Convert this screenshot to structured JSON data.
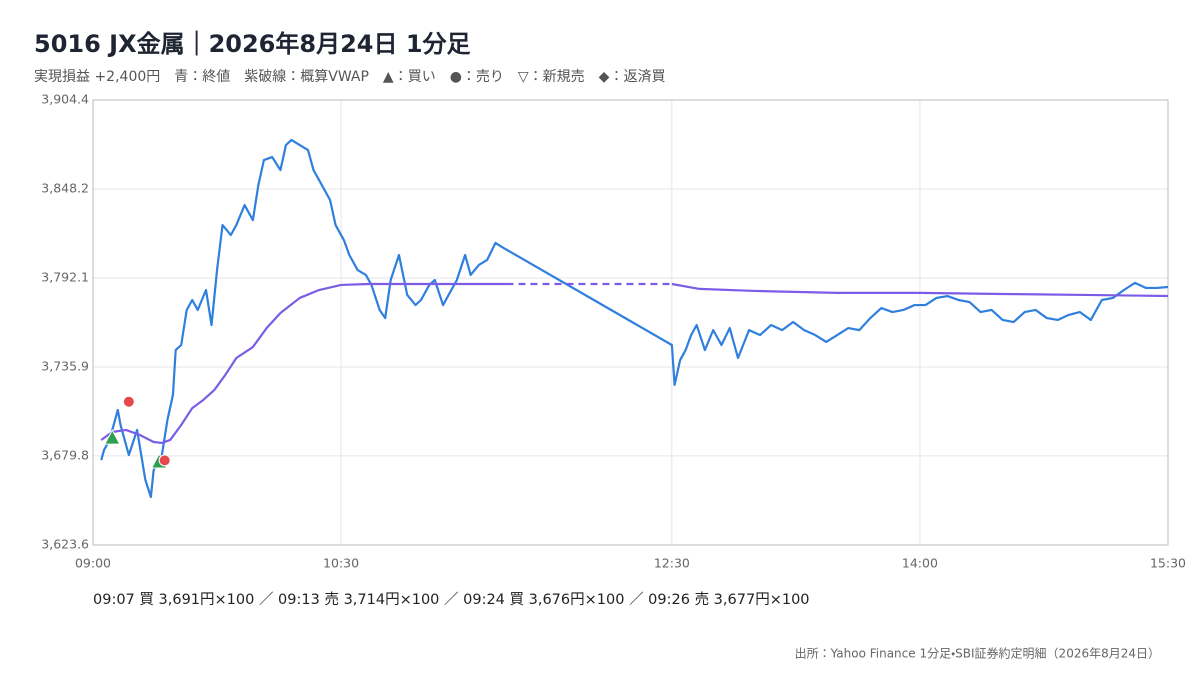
{
  "chart_data": {
    "type": "line",
    "title": "5016 JX金属｜2026年8月24日 1分足",
    "subtitle": "実現損益 +2,400円　青：終値　紫破線：概算VWAP　▲：買い　●：売り　▽：新規売　◆：返済買",
    "footer": "09:07 買 3,691円×100 ／ 09:13 売 3,714円×100 ／ 09:24 買 3,676円×100 ／ 09:26 売 3,677円×100",
    "source": "出所：Yahoo Finance 1分足・SBI証券約定明細（2026年8月24日）",
    "xlim": [
      "09:00",
      "15:30"
    ],
    "xticks": [
      "09:00",
      "10:30",
      "12:30",
      "14:00",
      "15:30"
    ],
    "ylim": [
      3623.6,
      3904.4
    ],
    "yticks": [
      {
        "value": 3623.6,
        "label": "3,623.6"
      },
      {
        "value": 3679.8,
        "label": "3,679.8"
      },
      {
        "value": 3735.9,
        "label": "3,735.9"
      },
      {
        "value": 3792.1,
        "label": "3,792.1"
      },
      {
        "value": 3848.2,
        "label": "3,848.2"
      },
      {
        "value": 3904.4,
        "label": "3,904.4"
      }
    ],
    "grid": true,
    "series": [
      {
        "color": "#2f7fde",
        "gap_style": "solid",
        "x": [
          "09:03",
          "09:04",
          "09:06",
          "09:09",
          "09:10",
          "09:13",
          "09:16",
          "09:19",
          "09:21",
          "09:22",
          "09:25",
          "09:27",
          "09:29",
          "09:30",
          "09:32",
          "09:34",
          "09:36",
          "09:38",
          "09:41",
          "09:43",
          "09:45",
          "09:47",
          "09:50",
          "09:52",
          "09:55",
          "09:58",
          "10:00",
          "10:02",
          "10:05",
          "10:08",
          "10:10",
          "10:12",
          "10:15",
          "10:18",
          "10:20",
          "10:23",
          "10:26",
          "10:28",
          "10:31",
          "10:33",
          "10:36",
          "10:39",
          "10:41",
          "10:44",
          "10:46",
          "10:48",
          "10:51",
          "10:54",
          "10:57",
          "10:59",
          "11:02",
          "11:04",
          "11:07",
          "11:10",
          "11:12",
          "11:15",
          "11:17",
          "11:20",
          "11:23",
          "11:26",
          "11:29",
          "12:30",
          "12:31",
          "12:33",
          "12:35",
          "12:37",
          "12:39",
          "12:42",
          "12:45",
          "12:48",
          "12:51",
          "12:54",
          "12:58",
          "13:02",
          "13:06",
          "13:10",
          "13:14",
          "13:18",
          "13:22",
          "13:26",
          "13:30",
          "13:34",
          "13:38",
          "13:42",
          "13:46",
          "13:50",
          "13:54",
          "13:58",
          "14:02",
          "14:06",
          "14:10",
          "14:14",
          "14:18",
          "14:22",
          "14:26",
          "14:30",
          "14:34",
          "14:38",
          "14:42",
          "14:46",
          "14:50",
          "14:54",
          "14:58",
          "15:02",
          "15:06",
          "15:10",
          "15:14",
          "15:18",
          "15:22",
          "15:26",
          "15:30"
        ],
        "values": [
          3677.2,
          3683.5,
          3689.9,
          3708.8,
          3699.3,
          3680.4,
          3696.2,
          3664.6,
          3653.9,
          3670.9,
          3680.4,
          3702.5,
          3718.3,
          3746.6,
          3749.8,
          3771.9,
          3778.2,
          3771.9,
          3784.5,
          3762.4,
          3797.1,
          3825.5,
          3819.2,
          3825.5,
          3838.1,
          3828.6,
          3850.8,
          3866.5,
          3868.4,
          3860.2,
          3876.0,
          3879.2,
          3876.0,
          3872.8,
          3860.2,
          3850.8,
          3841.3,
          3825.5,
          3816.1,
          3806.6,
          3797.1,
          3794.0,
          3787.7,
          3771.9,
          3766.8,
          3790.8,
          3806.6,
          3781.4,
          3775.0,
          3778.2,
          3787.7,
          3790.8,
          3775.0,
          3784.5,
          3790.8,
          3806.6,
          3794.0,
          3800.3,
          3803.5,
          3814.2,
          3811.0,
          3749.8,
          3724.6,
          3740.3,
          3746.6,
          3756.1,
          3762.4,
          3746.6,
          3759.2,
          3749.8,
          3760.5,
          3741.6,
          3759.2,
          3756.1,
          3762.4,
          3759.2,
          3764.3,
          3759.2,
          3756.1,
          3751.7,
          3756.1,
          3760.5,
          3759.2,
          3766.8,
          3773.1,
          3770.6,
          3771.9,
          3775.0,
          3775.0,
          3779.5,
          3780.7,
          3778.2,
          3776.9,
          3770.6,
          3771.9,
          3765.6,
          3764.3,
          3770.6,
          3771.9,
          3766.8,
          3765.6,
          3768.8,
          3770.6,
          3765.6,
          3778.2,
          3779.5,
          3784.5,
          3789.0,
          3785.8,
          3785.8,
          3786.4
        ]
      },
      {
        "color": "#7b5ce6",
        "gap_style": "dashed",
        "x": [
          "09:03",
          "09:07",
          "09:12",
          "09:17",
          "09:22",
          "09:25",
          "09:28",
          "09:32",
          "09:36",
          "09:40",
          "09:44",
          "09:48",
          "09:52",
          "09:58",
          "10:03",
          "10:08",
          "10:15",
          "10:22",
          "10:30",
          "10:40",
          "11:00",
          "11:30",
          "12:30",
          "12:40",
          "13:00",
          "13:30",
          "14:00",
          "14:30",
          "15:00",
          "15:30"
        ],
        "values": [
          3689.9,
          3694.9,
          3696.2,
          3693.0,
          3688.6,
          3688.0,
          3689.9,
          3699.3,
          3710.0,
          3715.1,
          3721.4,
          3730.9,
          3741.6,
          3748.5,
          3760.5,
          3770.0,
          3779.5,
          3784.5,
          3787.7,
          3788.3,
          3788.3,
          3788.3,
          3788.3,
          3785.2,
          3783.9,
          3782.7,
          3782.7,
          3782.0,
          3781.4,
          3780.7
        ]
      }
    ],
    "trades": [
      {
        "x": "09:07",
        "y": 3691,
        "side": "買"
      },
      {
        "x": "09:13",
        "y": 3714,
        "side": "売"
      },
      {
        "x": "09:24",
        "y": 3676,
        "side": "買"
      },
      {
        "x": "09:26",
        "y": 3677,
        "side": "売"
      }
    ],
    "trade_colors": {
      "買": "#2e9e4f",
      "売": "#e5484d"
    }
  }
}
